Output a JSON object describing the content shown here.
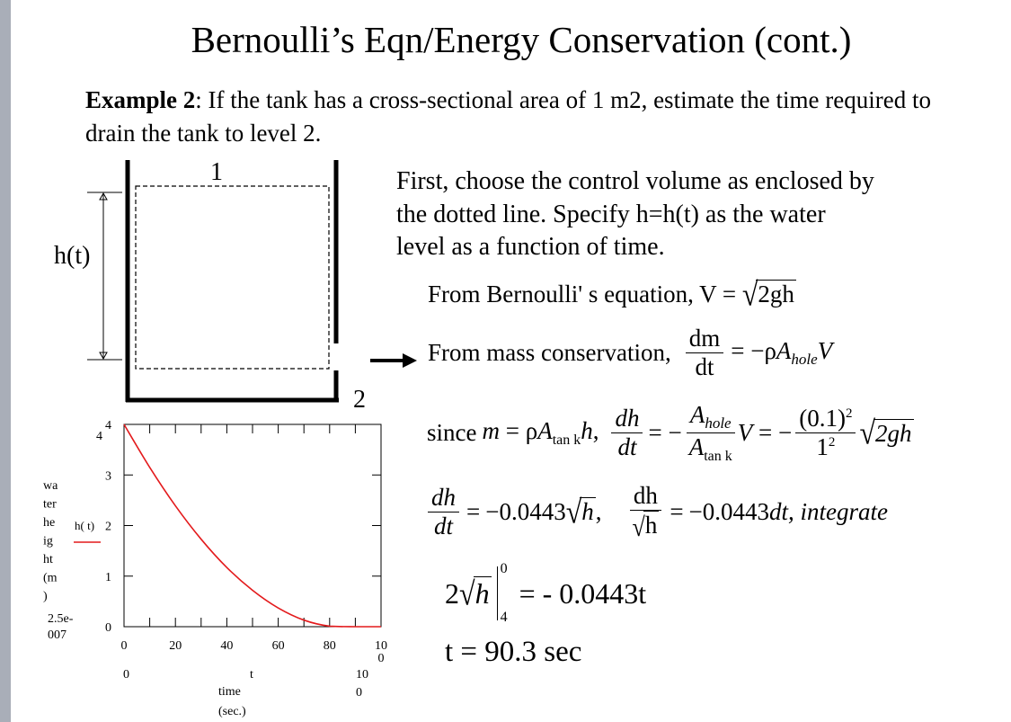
{
  "slide": {
    "title": "Bernoulli’s Eqn/Energy Conservation (cont.)",
    "example_label": "Example 2",
    "example_text": ": If the tank has a cross-sectional area of 1 m2, estimate the time required to drain the tank to level 2.",
    "description": "First, choose the control volume as enclosed by the dotted line.  Specify h=h(t) as the water\nlevel as a function of time."
  },
  "tank": {
    "label_top": "1",
    "label_bottom": "2",
    "height_label": "h(t)"
  },
  "equations": {
    "bernoulli_prefix": "From Bernoulli' s equation,  V =",
    "bernoulli_radicand": "2gh",
    "mass_prefix": "From mass conservation,",
    "mass_num": "dm",
    "mass_den": "dt",
    "since_word": "since",
    "hole": "hole",
    "tank": "tan k",
    "coef": "(0.1)",
    "exp": "2",
    "one": "1",
    "dh": "dh",
    "dt": "dt",
    "coef2": "−0.0443",
    "h": "h",
    "dh_plain": "dh",
    "sqrt_h": "h",
    "coef3": "−0.0443",
    "dt_int": "dt, integrate",
    "lower_limit": "4",
    "upper_limit": "0",
    "int_rhs": "= - 0.0443t",
    "result": "t = 90.3 sec"
  },
  "chart_data": {
    "type": "line",
    "x": [
      0,
      10,
      20,
      30,
      40,
      50,
      60,
      70,
      80,
      90,
      100
    ],
    "series": [
      {
        "name": "h( t)",
        "values": [
          4,
          3.15,
          2.39,
          1.73,
          1.17,
          0.72,
          0.37,
          0.13,
          0.01,
          0,
          0
        ]
      }
    ],
    "xlim": [
      0,
      100
    ],
    "ylim": [
      0,
      4
    ],
    "x_ticks": [
      "0",
      "20",
      "40",
      "60",
      "80",
      "10\n0"
    ],
    "y_ticks": [
      "0",
      "1",
      "2",
      "3",
      "4"
    ],
    "ymax_label": "4",
    "ymin_label": "2.5e-\n007",
    "xmin_label": "0",
    "xmax_label": "10\n0",
    "x_var": "t",
    "xlabel": "time\n(sec.)",
    "ylabel": "wa\nter\nhe\nig\nht\n(m\n)",
    "curve_color": "#e31a1c"
  }
}
